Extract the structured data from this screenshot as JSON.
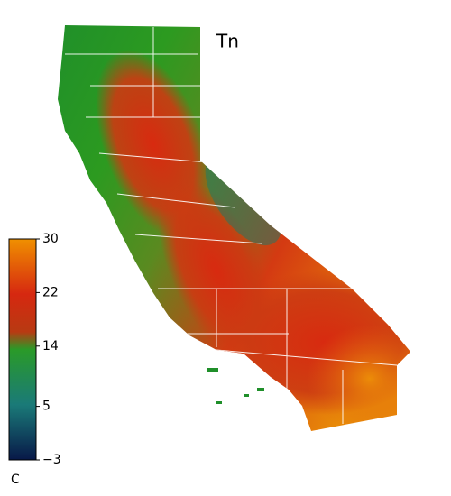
{
  "title": "Tn",
  "colorbar": {
    "unit": "C",
    "lim": [
      -3,
      30
    ],
    "ticks": [
      {
        "value": -3,
        "label": "−3"
      },
      5,
      14,
      22,
      30
    ]
  }
}
